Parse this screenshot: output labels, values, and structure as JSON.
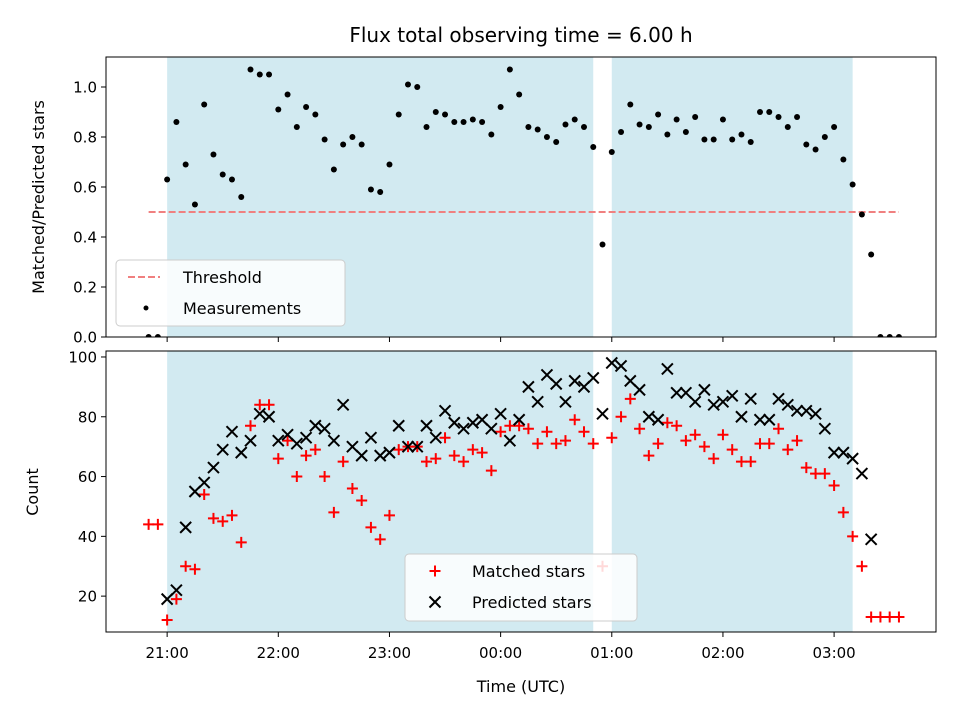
{
  "chart_data": [
    {
      "type": "scatter",
      "title": "Flux total observing time = 6.00 h",
      "xlabel": "",
      "ylabel": "Matched/Predicted stars",
      "ylim": [
        0,
        1.12
      ],
      "xlim": [
        "20:27",
        "03:55"
      ],
      "x_ticks": [
        "21:00",
        "22:00",
        "23:00",
        "00:00",
        "01:00",
        "02:00",
        "03:00"
      ],
      "y_ticks": [
        "0.0",
        "0.2",
        "0.4",
        "0.6",
        "0.8",
        "1.0"
      ],
      "shaded_periods": [
        [
          "21:00",
          "00:50"
        ],
        [
          "01:00",
          "03:10"
        ]
      ],
      "threshold": {
        "name": "Threshold",
        "value": 0.5,
        "x_range": [
          "20:50",
          "03:35"
        ],
        "color": "#f08080"
      },
      "series": [
        {
          "name": "Measurements",
          "color": "#000000",
          "marker": "dot",
          "points": [
            [
              "20:50",
              0.0
            ],
            [
              "20:55",
              0.0
            ],
            [
              "21:00",
              0.63
            ],
            [
              "21:05",
              0.86
            ],
            [
              "21:10",
              0.69
            ],
            [
              "21:15",
              0.53
            ],
            [
              "21:20",
              0.93
            ],
            [
              "21:25",
              0.73
            ],
            [
              "21:30",
              0.65
            ],
            [
              "21:35",
              0.63
            ],
            [
              "21:40",
              0.56
            ],
            [
              "21:45",
              1.07
            ],
            [
              "21:50",
              1.05
            ],
            [
              "21:55",
              1.05
            ],
            [
              "22:00",
              0.91
            ],
            [
              "22:05",
              0.97
            ],
            [
              "22:10",
              0.84
            ],
            [
              "22:15",
              0.92
            ],
            [
              "22:20",
              0.89
            ],
            [
              "22:25",
              0.79
            ],
            [
              "22:30",
              0.67
            ],
            [
              "22:35",
              0.77
            ],
            [
              "22:40",
              0.8
            ],
            [
              "22:45",
              0.77
            ],
            [
              "22:50",
              0.59
            ],
            [
              "22:55",
              0.58
            ],
            [
              "23:00",
              0.69
            ],
            [
              "23:05",
              0.89
            ],
            [
              "23:10",
              1.01
            ],
            [
              "23:15",
              1.0
            ],
            [
              "23:20",
              0.84
            ],
            [
              "23:25",
              0.9
            ],
            [
              "23:30",
              0.89
            ],
            [
              "23:35",
              0.86
            ],
            [
              "23:40",
              0.86
            ],
            [
              "23:45",
              0.87
            ],
            [
              "23:50",
              0.86
            ],
            [
              "23:55",
              0.81
            ],
            [
              "00:00",
              0.92
            ],
            [
              "00:05",
              1.07
            ],
            [
              "00:10",
              0.97
            ],
            [
              "00:15",
              0.84
            ],
            [
              "00:20",
              0.83
            ],
            [
              "00:25",
              0.8
            ],
            [
              "00:30",
              0.78
            ],
            [
              "00:35",
              0.85
            ],
            [
              "00:40",
              0.87
            ],
            [
              "00:45",
              0.84
            ],
            [
              "00:50",
              0.76
            ],
            [
              "00:55",
              0.37
            ],
            [
              "01:00",
              0.74
            ],
            [
              "01:05",
              0.82
            ],
            [
              "01:10",
              0.93
            ],
            [
              "01:15",
              0.85
            ],
            [
              "01:20",
              0.84
            ],
            [
              "01:25",
              0.89
            ],
            [
              "01:30",
              0.81
            ],
            [
              "01:35",
              0.87
            ],
            [
              "01:40",
              0.82
            ],
            [
              "01:45",
              0.88
            ],
            [
              "01:50",
              0.79
            ],
            [
              "01:55",
              0.79
            ],
            [
              "02:00",
              0.87
            ],
            [
              "02:05",
              0.79
            ],
            [
              "02:10",
              0.81
            ],
            [
              "02:15",
              0.78
            ],
            [
              "02:20",
              0.9
            ],
            [
              "02:25",
              0.9
            ],
            [
              "02:30",
              0.88
            ],
            [
              "02:35",
              0.84
            ],
            [
              "02:40",
              0.88
            ],
            [
              "02:45",
              0.77
            ],
            [
              "02:50",
              0.75
            ],
            [
              "02:55",
              0.8
            ],
            [
              "03:00",
              0.84
            ],
            [
              "03:05",
              0.71
            ],
            [
              "03:10",
              0.61
            ],
            [
              "03:15",
              0.49
            ],
            [
              "03:20",
              0.33
            ],
            [
              "03:25",
              0.0
            ],
            [
              "03:30",
              0.0
            ],
            [
              "03:35",
              0.0
            ]
          ]
        }
      ],
      "legend": {
        "position": "lower-left",
        "entries": [
          "Threshold",
          "Measurements"
        ]
      }
    },
    {
      "type": "scatter",
      "title": "",
      "xlabel": "Time (UTC)",
      "ylabel": "Count",
      "ylim": [
        8,
        102
      ],
      "xlim": [
        "20:27",
        "03:55"
      ],
      "x_ticks": [
        "21:00",
        "22:00",
        "23:00",
        "00:00",
        "01:00",
        "02:00",
        "03:00"
      ],
      "y_ticks": [
        "20",
        "40",
        "60",
        "80",
        "100"
      ],
      "shaded_periods": [
        [
          "21:00",
          "00:50"
        ],
        [
          "01:00",
          "03:10"
        ]
      ],
      "series": [
        {
          "name": "Matched stars",
          "color": "#ff0000",
          "marker": "plus",
          "points": [
            [
              "20:50",
              44
            ],
            [
              "20:55",
              44
            ],
            [
              "21:00",
              12
            ],
            [
              "21:05",
              19
            ],
            [
              "21:10",
              30
            ],
            [
              "21:15",
              29
            ],
            [
              "21:20",
              54
            ],
            [
              "21:25",
              46
            ],
            [
              "21:30",
              45
            ],
            [
              "21:35",
              47
            ],
            [
              "21:40",
              38
            ],
            [
              "21:45",
              77
            ],
            [
              "21:50",
              84
            ],
            [
              "21:55",
              84
            ],
            [
              "22:00",
              66
            ],
            [
              "22:05",
              72
            ],
            [
              "22:10",
              60
            ],
            [
              "22:15",
              67
            ],
            [
              "22:20",
              69
            ],
            [
              "22:25",
              60
            ],
            [
              "22:30",
              48
            ],
            [
              "22:35",
              65
            ],
            [
              "22:40",
              56
            ],
            [
              "22:45",
              52
            ],
            [
              "22:50",
              43
            ],
            [
              "22:55",
              39
            ],
            [
              "23:00",
              47
            ],
            [
              "23:05",
              69
            ],
            [
              "23:10",
              70
            ],
            [
              "23:15",
              70
            ],
            [
              "23:20",
              65
            ],
            [
              "23:25",
              66
            ],
            [
              "23:30",
              73
            ],
            [
              "23:35",
              67
            ],
            [
              "23:40",
              65
            ],
            [
              "23:45",
              69
            ],
            [
              "23:50",
              68
            ],
            [
              "23:55",
              62
            ],
            [
              "00:00",
              75
            ],
            [
              "00:05",
              77
            ],
            [
              "00:10",
              77
            ],
            [
              "00:15",
              76
            ],
            [
              "00:20",
              71
            ],
            [
              "00:25",
              75
            ],
            [
              "00:30",
              71
            ],
            [
              "00:35",
              72
            ],
            [
              "00:40",
              79
            ],
            [
              "00:45",
              75
            ],
            [
              "00:50",
              71
            ],
            [
              "00:55",
              30
            ],
            [
              "01:00",
              73
            ],
            [
              "01:05",
              80
            ],
            [
              "01:10",
              86
            ],
            [
              "01:15",
              76
            ],
            [
              "01:20",
              67
            ],
            [
              "01:25",
              71
            ],
            [
              "01:30",
              78
            ],
            [
              "01:35",
              77
            ],
            [
              "01:40",
              72
            ],
            [
              "01:45",
              74
            ],
            [
              "01:50",
              70
            ],
            [
              "01:55",
              66
            ],
            [
              "02:00",
              74
            ],
            [
              "02:05",
              69
            ],
            [
              "02:10",
              65
            ],
            [
              "02:15",
              65
            ],
            [
              "02:20",
              71
            ],
            [
              "02:25",
              71
            ],
            [
              "02:30",
              76
            ],
            [
              "02:35",
              69
            ],
            [
              "02:40",
              72
            ],
            [
              "02:45",
              63
            ],
            [
              "02:50",
              61
            ],
            [
              "02:55",
              61
            ],
            [
              "03:00",
              57
            ],
            [
              "03:05",
              48
            ],
            [
              "03:10",
              40
            ],
            [
              "03:15",
              30
            ],
            [
              "03:20",
              13
            ],
            [
              "03:25",
              13
            ],
            [
              "03:30",
              13
            ],
            [
              "03:35",
              13
            ]
          ]
        },
        {
          "name": "Predicted stars",
          "color": "#000000",
          "marker": "x",
          "points": [
            [
              "21:00",
              19
            ],
            [
              "21:05",
              22
            ],
            [
              "21:10",
              43
            ],
            [
              "21:15",
              55
            ],
            [
              "21:20",
              58
            ],
            [
              "21:25",
              63
            ],
            [
              "21:30",
              69
            ],
            [
              "21:35",
              75
            ],
            [
              "21:40",
              68
            ],
            [
              "21:45",
              72
            ],
            [
              "21:50",
              81
            ],
            [
              "21:55",
              80
            ],
            [
              "22:00",
              72
            ],
            [
              "22:05",
              74
            ],
            [
              "22:10",
              71
            ],
            [
              "22:15",
              73
            ],
            [
              "22:20",
              77
            ],
            [
              "22:25",
              76
            ],
            [
              "22:30",
              72
            ],
            [
              "22:35",
              84
            ],
            [
              "22:40",
              70
            ],
            [
              "22:45",
              67
            ],
            [
              "22:50",
              73
            ],
            [
              "22:55",
              67
            ],
            [
              "23:00",
              68
            ],
            [
              "23:05",
              77
            ],
            [
              "23:10",
              70
            ],
            [
              "23:15",
              70
            ],
            [
              "23:20",
              77
            ],
            [
              "23:25",
              73
            ],
            [
              "23:30",
              82
            ],
            [
              "23:35",
              78
            ],
            [
              "23:40",
              76
            ],
            [
              "23:45",
              78
            ],
            [
              "23:50",
              79
            ],
            [
              "23:55",
              76
            ],
            [
              "00:00",
              81
            ],
            [
              "00:05",
              72
            ],
            [
              "00:10",
              79
            ],
            [
              "00:15",
              90
            ],
            [
              "00:20",
              85
            ],
            [
              "00:25",
              94
            ],
            [
              "00:30",
              91
            ],
            [
              "00:35",
              85
            ],
            [
              "00:40",
              92
            ],
            [
              "00:45",
              90
            ],
            [
              "00:50",
              93
            ],
            [
              "00:55",
              81
            ],
            [
              "01:00",
              98
            ],
            [
              "01:05",
              97
            ],
            [
              "01:10",
              92
            ],
            [
              "01:15",
              89
            ],
            [
              "01:20",
              80
            ],
            [
              "01:25",
              79
            ],
            [
              "01:30",
              96
            ],
            [
              "01:35",
              88
            ],
            [
              "01:40",
              88
            ],
            [
              "01:45",
              85
            ],
            [
              "01:50",
              89
            ],
            [
              "01:55",
              84
            ],
            [
              "02:00",
              85
            ],
            [
              "02:05",
              87
            ],
            [
              "02:10",
              80
            ],
            [
              "02:15",
              86
            ],
            [
              "02:20",
              79
            ],
            [
              "02:25",
              79
            ],
            [
              "02:30",
              86
            ],
            [
              "02:35",
              84
            ],
            [
              "02:40",
              82
            ],
            [
              "02:45",
              82
            ],
            [
              "02:50",
              81
            ],
            [
              "02:55",
              76
            ],
            [
              "03:00",
              68
            ],
            [
              "03:05",
              68
            ],
            [
              "03:10",
              66
            ],
            [
              "03:15",
              61
            ],
            [
              "03:20",
              39
            ]
          ]
        }
      ],
      "legend": {
        "position": "lower-center",
        "entries": [
          "Matched stars",
          "Predicted stars"
        ]
      }
    }
  ]
}
